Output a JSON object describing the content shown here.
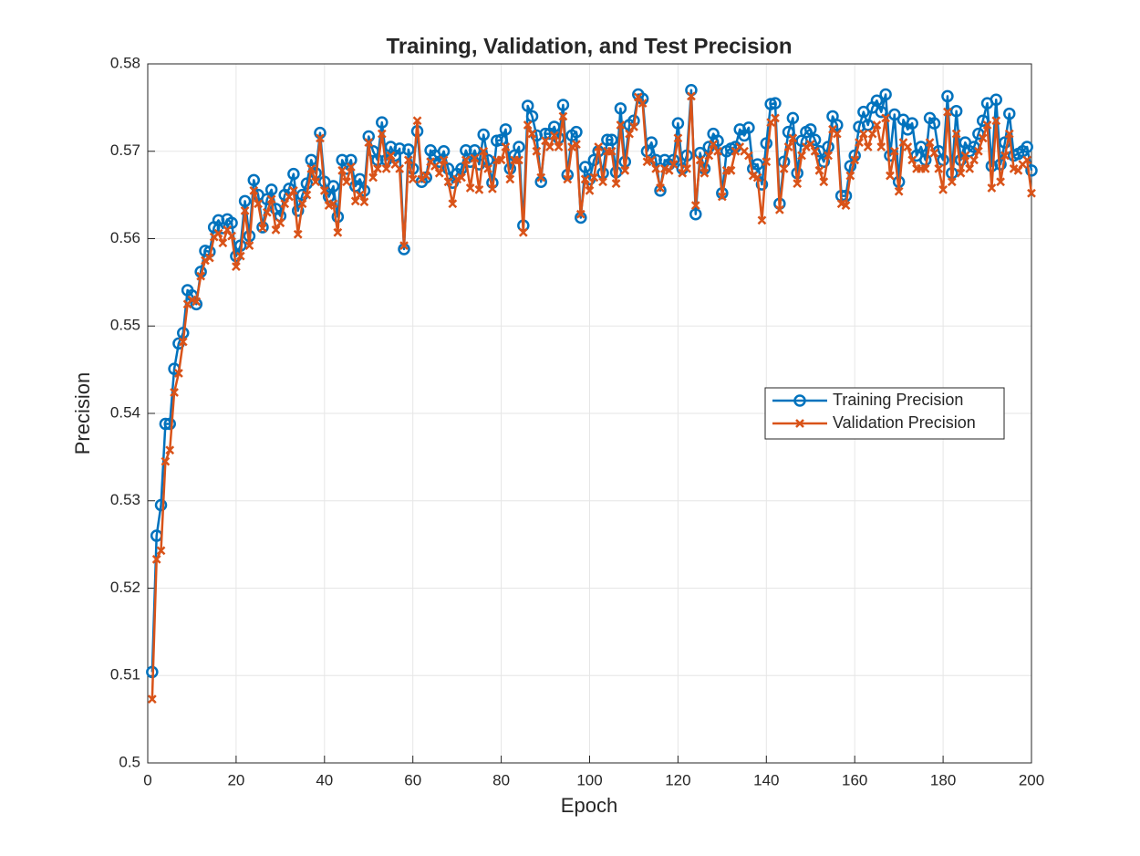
{
  "chart_data": {
    "type": "line",
    "title": "Training, Validation, and Test Precision",
    "xlabel": "Epoch",
    "ylabel": "Precision",
    "x": [
      1,
      2,
      3,
      4,
      5,
      6,
      7,
      8,
      9,
      10,
      11,
      12,
      13,
      14,
      15,
      16,
      17,
      18,
      19,
      20,
      21,
      22,
      23,
      24,
      25,
      26,
      27,
      28,
      29,
      30,
      31,
      32,
      33,
      34,
      35,
      36,
      37,
      38,
      39,
      40,
      41,
      42,
      43,
      44,
      45,
      46,
      47,
      48,
      49,
      50,
      51,
      52,
      53,
      54,
      55,
      56,
      57,
      58,
      59,
      60,
      61,
      62,
      63,
      64,
      65,
      66,
      67,
      68,
      69,
      70,
      71,
      72,
      73,
      74,
      75,
      76,
      77,
      78,
      79,
      80,
      81,
      82,
      83,
      84,
      85,
      86,
      87,
      88,
      89,
      90,
      91,
      92,
      93,
      94,
      95,
      96,
      97,
      98,
      99,
      100,
      101,
      102,
      103,
      104,
      105,
      106,
      107,
      108,
      109,
      110,
      111,
      112,
      113,
      114,
      115,
      116,
      117,
      118,
      119,
      120,
      121,
      122,
      123,
      124,
      125,
      126,
      127,
      128,
      129,
      130,
      131,
      132,
      133,
      134,
      135,
      136,
      137,
      138,
      139,
      140,
      141,
      142,
      143,
      144,
      145,
      146,
      147,
      148,
      149,
      150,
      151,
      152,
      153,
      154,
      155,
      156,
      157,
      158,
      159,
      160,
      161,
      162,
      163,
      164,
      165,
      166,
      167,
      168,
      169,
      170,
      171,
      172,
      173,
      174,
      175,
      176,
      177,
      178,
      179,
      180,
      181,
      182,
      183,
      184,
      185,
      186,
      187,
      188,
      189,
      190,
      191,
      192,
      193,
      194,
      195,
      196,
      197,
      198,
      199,
      200
    ],
    "series": [
      {
        "name": "Training Precision",
        "color": "#0072BD",
        "marker": "o",
        "values": [
          0.5104,
          0.526,
          0.5295,
          0.5388,
          0.5388,
          0.5451,
          0.548,
          0.5492,
          0.5541,
          0.5535,
          0.5525,
          0.5562,
          0.5586,
          0.5585,
          0.5613,
          0.5621,
          0.5612,
          0.5622,
          0.5618,
          0.558,
          0.5592,
          0.5643,
          0.5603,
          0.5667,
          0.565,
          0.5613,
          0.5645,
          0.5656,
          0.5634,
          0.5626,
          0.565,
          0.5657,
          0.5674,
          0.5632,
          0.565,
          0.5663,
          0.569,
          0.5675,
          0.5721,
          0.5665,
          0.5648,
          0.566,
          0.5625,
          0.569,
          0.568,
          0.569,
          0.566,
          0.5668,
          0.5655,
          0.5717,
          0.57,
          0.569,
          0.5733,
          0.569,
          0.5705,
          0.5695,
          0.5703,
          0.5588,
          0.5702,
          0.568,
          0.5723,
          0.5665,
          0.567,
          0.5701,
          0.5695,
          0.5688,
          0.57,
          0.568,
          0.5664,
          0.5674,
          0.568,
          0.5701,
          0.5688,
          0.5701,
          0.5685,
          0.5719,
          0.569,
          0.5664,
          0.5712,
          0.5713,
          0.5725,
          0.568,
          0.5695,
          0.5705,
          0.5615,
          0.5752,
          0.574,
          0.5718,
          0.5665,
          0.572,
          0.572,
          0.5728,
          0.5715,
          0.5753,
          0.5673,
          0.5718,
          0.5722,
          0.5624,
          0.5682,
          0.5668,
          0.569,
          0.57,
          0.5675,
          0.5713,
          0.5713,
          0.5676,
          0.5749,
          0.5688,
          0.573,
          0.5735,
          0.5765,
          0.576,
          0.57,
          0.571,
          0.569,
          0.5655,
          0.569,
          0.5685,
          0.569,
          0.5732,
          0.568,
          0.5695,
          0.577,
          0.5628,
          0.5698,
          0.568,
          0.5705,
          0.572,
          0.5712,
          0.5652,
          0.57,
          0.5703,
          0.5705,
          0.5725,
          0.5718,
          0.5727,
          0.568,
          0.5685,
          0.5662,
          0.5709,
          0.5754,
          0.5755,
          0.564,
          0.5688,
          0.5722,
          0.5738,
          0.5675,
          0.5712,
          0.5722,
          0.5725,
          0.5713,
          0.57,
          0.5688,
          0.5705,
          0.574,
          0.573,
          0.5649,
          0.5649,
          0.5683,
          0.5695,
          0.5728,
          0.5745,
          0.573,
          0.575,
          0.5758,
          0.5745,
          0.5765,
          0.5695,
          0.5742,
          0.5665,
          0.5736,
          0.5725,
          0.5732,
          0.5695,
          0.5705,
          0.569,
          0.5738,
          0.5732,
          0.57,
          0.569,
          0.5763,
          0.5675,
          0.5746,
          0.569,
          0.571,
          0.57,
          0.5705,
          0.572,
          0.5735,
          0.5755,
          0.5683,
          0.5759,
          0.5685,
          0.571,
          0.5743,
          0.5695,
          0.5697,
          0.57,
          0.5705,
          0.5678
        ]
      },
      {
        "name": "Validation Precision",
        "color": "#D95319",
        "marker": "x",
        "values": [
          0.5073,
          0.5233,
          0.5243,
          0.5345,
          0.5358,
          0.5424,
          0.5446,
          0.5482,
          0.5525,
          0.553,
          0.5528,
          0.5557,
          0.5575,
          0.5578,
          0.5602,
          0.5606,
          0.5595,
          0.561,
          0.5603,
          0.5568,
          0.558,
          0.5632,
          0.5592,
          0.5655,
          0.564,
          0.5612,
          0.563,
          0.5645,
          0.561,
          0.5618,
          0.564,
          0.5648,
          0.5655,
          0.5605,
          0.564,
          0.565,
          0.568,
          0.5665,
          0.5715,
          0.5655,
          0.5638,
          0.564,
          0.5607,
          0.5678,
          0.5665,
          0.5682,
          0.5643,
          0.565,
          0.5642,
          0.571,
          0.567,
          0.568,
          0.572,
          0.568,
          0.5695,
          0.5685,
          0.568,
          0.5592,
          0.569,
          0.5668,
          0.5735,
          0.5668,
          0.5672,
          0.5688,
          0.5683,
          0.5675,
          0.569,
          0.5665,
          0.564,
          0.5668,
          0.567,
          0.569,
          0.5658,
          0.5692,
          0.5656,
          0.57,
          0.568,
          0.5657,
          0.569,
          0.569,
          0.5705,
          0.5668,
          0.569,
          0.569,
          0.5607,
          0.573,
          0.572,
          0.57,
          0.567,
          0.5712,
          0.5705,
          0.5718,
          0.5705,
          0.574,
          0.5668,
          0.5705,
          0.5708,
          0.5628,
          0.5668,
          0.5655,
          0.567,
          0.5705,
          0.5665,
          0.57,
          0.57,
          0.5663,
          0.573,
          0.5678,
          0.572,
          0.5728,
          0.5762,
          0.5755,
          0.5688,
          0.569,
          0.568,
          0.5658,
          0.568,
          0.5678,
          0.5685,
          0.5715,
          0.5675,
          0.568,
          0.5763,
          0.5638,
          0.569,
          0.5675,
          0.5695,
          0.5708,
          0.57,
          0.5648,
          0.5678,
          0.5678,
          0.57,
          0.5705,
          0.57,
          0.5695,
          0.5672,
          0.567,
          0.5621,
          0.5688,
          0.5733,
          0.5738,
          0.5633,
          0.568,
          0.5705,
          0.5715,
          0.5663,
          0.5695,
          0.5705,
          0.5708,
          0.57,
          0.5678,
          0.5665,
          0.5695,
          0.5725,
          0.572,
          0.564,
          0.5638,
          0.5672,
          0.569,
          0.571,
          0.572,
          0.5705,
          0.572,
          0.573,
          0.5705,
          0.5738,
          0.5672,
          0.57,
          0.5654,
          0.571,
          0.5705,
          0.569,
          0.568,
          0.568,
          0.568,
          0.571,
          0.5698,
          0.568,
          0.5656,
          0.5745,
          0.5665,
          0.572,
          0.5675,
          0.5695,
          0.568,
          0.569,
          0.57,
          0.5715,
          0.573,
          0.5658,
          0.5735,
          0.5665,
          0.5695,
          0.572,
          0.568,
          0.5678,
          0.5685,
          0.569,
          0.5652
        ]
      }
    ],
    "xlim": [
      0,
      200
    ],
    "xticks": [
      0,
      20,
      40,
      60,
      80,
      100,
      120,
      140,
      160,
      180,
      200
    ],
    "ylim": [
      0.5,
      0.58
    ],
    "yticks": [
      0.5,
      0.51,
      0.52,
      0.53,
      0.54,
      0.55,
      0.56,
      0.57,
      0.58
    ],
    "grid": true,
    "legend_location": "east"
  }
}
